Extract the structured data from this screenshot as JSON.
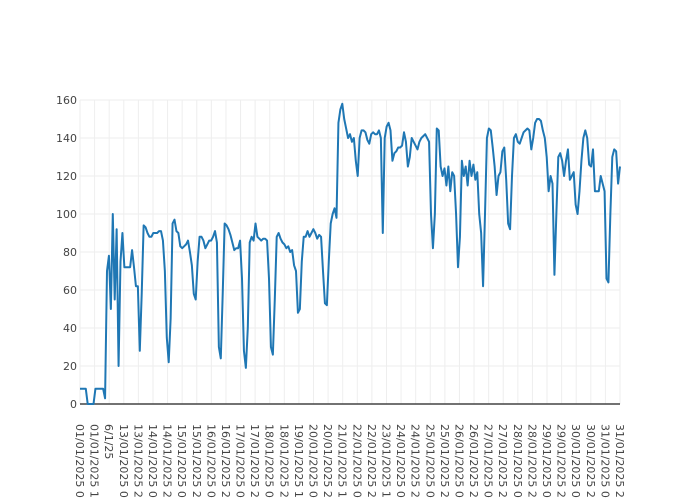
{
  "chart_data": {
    "type": "line",
    "title": "",
    "xlabel": "",
    "ylabel": "",
    "ylim": [
      0,
      160
    ],
    "yticks": [
      0,
      20,
      40,
      60,
      80,
      100,
      120,
      140,
      160
    ],
    "grid": true,
    "legend": "none",
    "colors": {
      "line": "#1f77b4",
      "zero_line": "#444444",
      "grid": "#eeeeee"
    },
    "x_tick_labels": [
      "01/01/2025 0",
      "01/01/2025 1",
      "6/1/25",
      "13/01/2025 0",
      "13/01/2025 2",
      "14/01/2025 0",
      "14/01/2025 2",
      "15/01/2025 0",
      "15/01/2025 2",
      "16/01/2025 0",
      "16/01/2025 2",
      "17/01/2025 0",
      "17/01/2025 2",
      "18/01/2025 0",
      "18/01/2025 2",
      "19/01/2025 1",
      "20/01/2025 0",
      "20/01/2025 2",
      "21/01/2025 1",
      "22/01/2025 0",
      "22/01/2025 2",
      "23/01/2025 1",
      "24/01/2025 0",
      "24/01/2025 2",
      "25/01/2025 0",
      "25/01/2025 2",
      "26/01/2025 0",
      "26/01/2025 2",
      "27/01/2025 0",
      "27/01/2025 2",
      "28/01/2025 0",
      "28/01/2025 2",
      "29/01/2025 0",
      "29/01/2025 2",
      "30/01/2025 0",
      "30/01/2025 2",
      "31/01/2025 0",
      "31/01/2025 2"
    ],
    "series": [
      {
        "values": [
          8,
          8,
          8,
          8,
          0,
          0,
          0,
          0,
          8,
          8,
          8,
          8,
          8,
          3,
          70,
          78,
          50,
          100,
          55,
          92,
          20,
          75,
          90,
          72,
          72,
          72,
          72,
          81,
          72,
          62,
          62,
          28,
          58,
          94,
          93,
          90,
          88,
          88,
          90,
          90,
          90,
          91,
          91,
          86,
          70,
          35,
          22,
          45,
          95,
          97,
          91,
          90,
          83,
          82,
          83,
          84,
          86,
          80,
          73,
          58,
          55,
          75,
          88,
          88,
          86,
          82,
          84,
          86,
          86,
          88,
          91,
          85,
          30,
          24,
          58,
          95,
          94,
          92,
          89,
          85,
          81,
          82,
          82,
          86,
          66,
          28,
          19,
          40,
          85,
          88,
          86,
          95,
          88,
          87,
          86,
          87,
          87,
          86,
          66,
          30,
          26,
          55,
          88,
          90,
          87,
          85,
          84,
          82,
          83,
          80,
          81,
          73,
          70,
          48,
          50,
          75,
          88,
          88,
          91,
          88,
          90,
          92,
          90,
          87,
          89,
          88,
          70,
          53,
          52,
          75,
          95,
          100,
          103,
          98,
          148,
          155,
          158,
          150,
          145,
          140,
          142,
          138,
          140,
          128,
          120,
          140,
          144,
          144,
          143,
          139,
          137,
          142,
          143,
          142,
          142,
          144,
          140,
          90,
          140,
          146,
          148,
          144,
          128,
          132,
          133,
          135,
          135,
          136,
          143,
          138,
          125,
          130,
          140,
          138,
          136,
          134,
          138,
          140,
          141,
          142,
          140,
          138,
          100,
          82,
          100,
          145,
          144,
          125,
          120,
          124,
          115,
          125,
          112,
          122,
          120,
          100,
          72,
          88,
          128,
          120,
          125,
          115,
          128,
          120,
          126,
          118,
          122,
          100,
          90,
          62,
          100,
          140,
          145,
          144,
          135,
          125,
          110,
          120,
          122,
          133,
          135,
          118,
          95,
          92,
          120,
          140,
          142,
          138,
          137,
          140,
          143,
          144,
          145,
          144,
          134,
          140,
          148,
          150,
          150,
          149,
          144,
          140,
          130,
          112,
          120,
          116,
          68,
          100,
          130,
          132,
          128,
          120,
          128,
          134,
          118,
          120,
          122,
          105,
          100,
          112,
          128,
          140,
          144,
          140,
          126,
          125,
          134,
          112,
          112,
          112,
          120,
          116,
          112,
          66,
          64,
          100,
          130,
          134,
          133,
          116,
          125
        ]
      }
    ]
  }
}
